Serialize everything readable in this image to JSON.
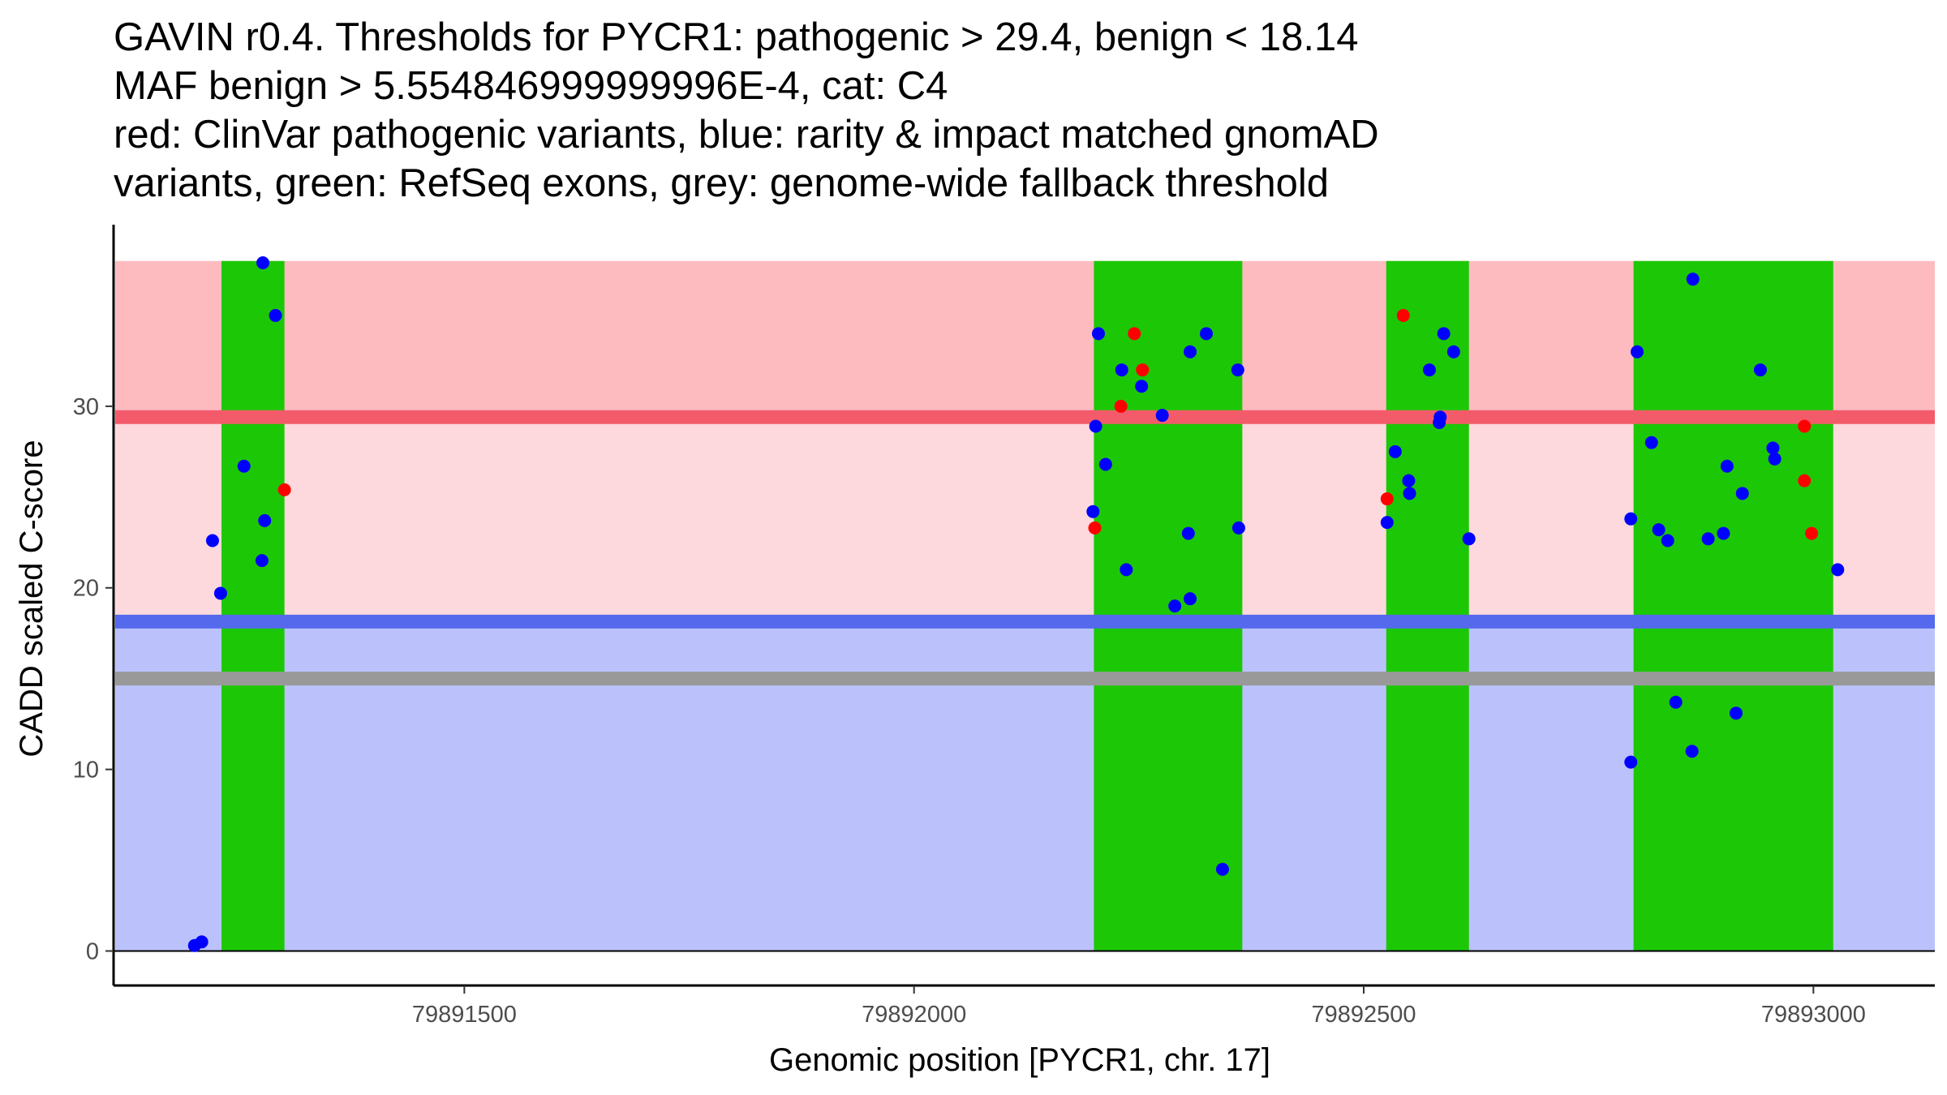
{
  "chart_data": {
    "type": "scatter",
    "title": [
      "GAVIN r0.4. Thresholds for PYCR1: pathogenic > 29.4, benign < 18.14",
      "MAF benign > 5.554846999999996E-4, cat: C4",
      "red: ClinVar pathogenic variants, blue: rarity & impact matched gnomAD",
      "variants, green: RefSeq exons, grey: genome-wide fallback threshold"
    ],
    "xlabel": "Genomic position [PYCR1, chr. 17]",
    "ylabel": "CADD scaled C-score",
    "xlim": [
      79891110,
      79893135
    ],
    "ylim": [
      -1.9,
      40
    ],
    "x_ticks": [
      {
        "value": 79891500,
        "label": "79891500"
      },
      {
        "value": 79892000,
        "label": "79892000"
      },
      {
        "value": 79892500,
        "label": "79892500"
      },
      {
        "value": 79893000,
        "label": "79893000"
      }
    ],
    "y_ticks": [
      {
        "value": 0,
        "label": "0"
      },
      {
        "value": 10,
        "label": "10"
      },
      {
        "value": 20,
        "label": "20"
      },
      {
        "value": 30,
        "label": "30"
      }
    ],
    "thresholds": {
      "pathogenic": 29.4,
      "benign": 18.14,
      "genome_wide_fallback": 15.0,
      "max_score": 38
    },
    "colors": {
      "pathogenic_band": "#fdbbc0",
      "intermediate_band": "#fdd8dc",
      "benign_band": "#bbc2fb",
      "pathogenic_line": "#f45b6a",
      "benign_line": "#5469ec",
      "fallback_line": "#999999",
      "exon": "#1cc805",
      "pathogenic_point": "#ff0000",
      "gnomad_point": "#0000ff"
    },
    "exons": [
      {
        "start": 79891230,
        "end": 79891300
      },
      {
        "start": 79892200,
        "end": 79892365
      },
      {
        "start": 79892525,
        "end": 79892617
      },
      {
        "start": 79892800,
        "end": 79893022
      }
    ],
    "series": [
      {
        "name": "ClinVar pathogenic variants",
        "color": "#ff0000",
        "points": [
          [
            79891300,
            25.4
          ],
          [
            79892201,
            23.3
          ],
          [
            79892230,
            30.0
          ],
          [
            79892245,
            34.0
          ],
          [
            79892254,
            32.0
          ],
          [
            79892526,
            24.9
          ],
          [
            79892544,
            35.0
          ],
          [
            79892990,
            28.9
          ],
          [
            79892990,
            25.9
          ],
          [
            79892998,
            23.0
          ]
        ]
      },
      {
        "name": "rarity & impact matched gnomAD variants",
        "color": "#0000ff",
        "points": [
          [
            79891200,
            0.3
          ],
          [
            79891208,
            0.5
          ],
          [
            79891220,
            22.6
          ],
          [
            79891229,
            19.7
          ],
          [
            79891255,
            26.7
          ],
          [
            79891275,
            21.5
          ],
          [
            79891278,
            23.7
          ],
          [
            79891276,
            37.9
          ],
          [
            79891290,
            35.0
          ],
          [
            79892199,
            24.2
          ],
          [
            79892202,
            28.9
          ],
          [
            79892205,
            34.0
          ],
          [
            79892213,
            26.8
          ],
          [
            79892231,
            32.0
          ],
          [
            79892236,
            21.0
          ],
          [
            79892253,
            31.1
          ],
          [
            79892276,
            29.5
          ],
          [
            79892290,
            19.0
          ],
          [
            79892305,
            23.0
          ],
          [
            79892307,
            33.0
          ],
          [
            79892307,
            19.4
          ],
          [
            79892325,
            34.0
          ],
          [
            79892343,
            4.5
          ],
          [
            79892360,
            32.0
          ],
          [
            79892361,
            23.3
          ],
          [
            79892526,
            23.6
          ],
          [
            79892535,
            27.5
          ],
          [
            79892550,
            25.9
          ],
          [
            79892551,
            25.2
          ],
          [
            79892573,
            32.0
          ],
          [
            79892584,
            29.1
          ],
          [
            79892585,
            29.4
          ],
          [
            79892589,
            34.0
          ],
          [
            79892600,
            33.0
          ],
          [
            79892617,
            22.7
          ],
          [
            79892797,
            10.4
          ],
          [
            79892797,
            23.8
          ],
          [
            79892804,
            33.0
          ],
          [
            79892820,
            28.0
          ],
          [
            79892828,
            23.2
          ],
          [
            79892838,
            22.6
          ],
          [
            79892847,
            13.7
          ],
          [
            79892865,
            11.0
          ],
          [
            79892866,
            37.0
          ],
          [
            79892883,
            22.7
          ],
          [
            79892900,
            23.0
          ],
          [
            79892904,
            26.7
          ],
          [
            79892914,
            13.1
          ],
          [
            79892921,
            25.2
          ],
          [
            79892941,
            32.0
          ],
          [
            79892955,
            27.7
          ],
          [
            79892957,
            27.1
          ],
          [
            79893027,
            21.0
          ]
        ]
      }
    ]
  }
}
